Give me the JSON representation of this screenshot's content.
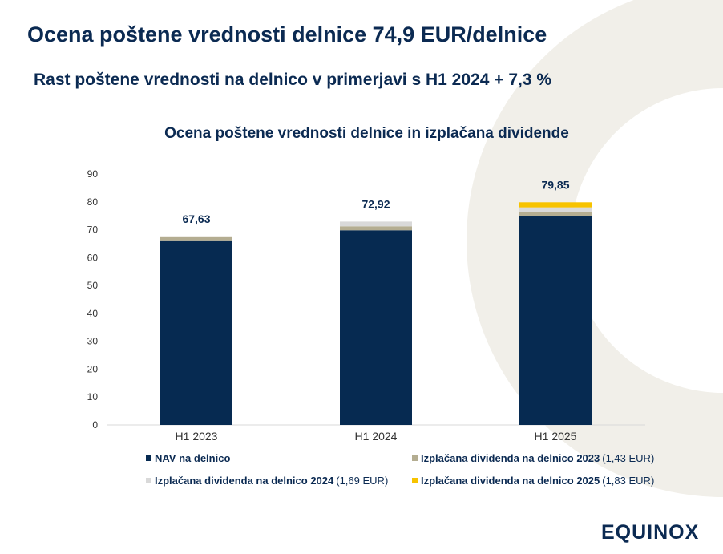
{
  "title": "Ocena poštene vrednosti delnice 74,9 EUR/delnice",
  "subtitle": "Rast poštene vrednosti na delnico v primerjavi s H1 2024 + 7,3 %",
  "logo": "EQUINOX",
  "colors": {
    "nav": "#062a51",
    "div2023": "#b4ad91",
    "div2024": "#d9d9d9",
    "div2025": "#f7c300",
    "decoration": "#f1efe9"
  },
  "chart_data": {
    "type": "bar",
    "stacked": true,
    "title": "Ocena poštene vrednosti delnice in izplačana dividende",
    "categories": [
      "H1 2023",
      "H1 2024",
      "H1 2025"
    ],
    "ylim": [
      0,
      90
    ],
    "yticks": [
      "0",
      "10",
      "20",
      "30",
      "40",
      "50",
      "60",
      "70",
      "80",
      "90"
    ],
    "grid": false,
    "legend_position": "bottom",
    "series": [
      {
        "name": "NAV na delnico",
        "values": [
          66.2,
          69.8,
          74.9
        ]
      },
      {
        "name": "Izplačana dividenda na delnico 2023",
        "note": "(1,43 EUR)",
        "values": [
          1.43,
          1.43,
          1.43
        ]
      },
      {
        "name": "Izplačana dividenda na delnico 2024",
        "note": "(1,69 EUR)",
        "values": [
          0,
          1.69,
          1.69
        ]
      },
      {
        "name": "Izplačana dividenda na delnico 2025",
        "note": "(1,83 EUR)",
        "values": [
          0,
          0,
          1.83
        ]
      }
    ],
    "totals": [
      "67,63",
      "72,92",
      "79,85"
    ]
  }
}
